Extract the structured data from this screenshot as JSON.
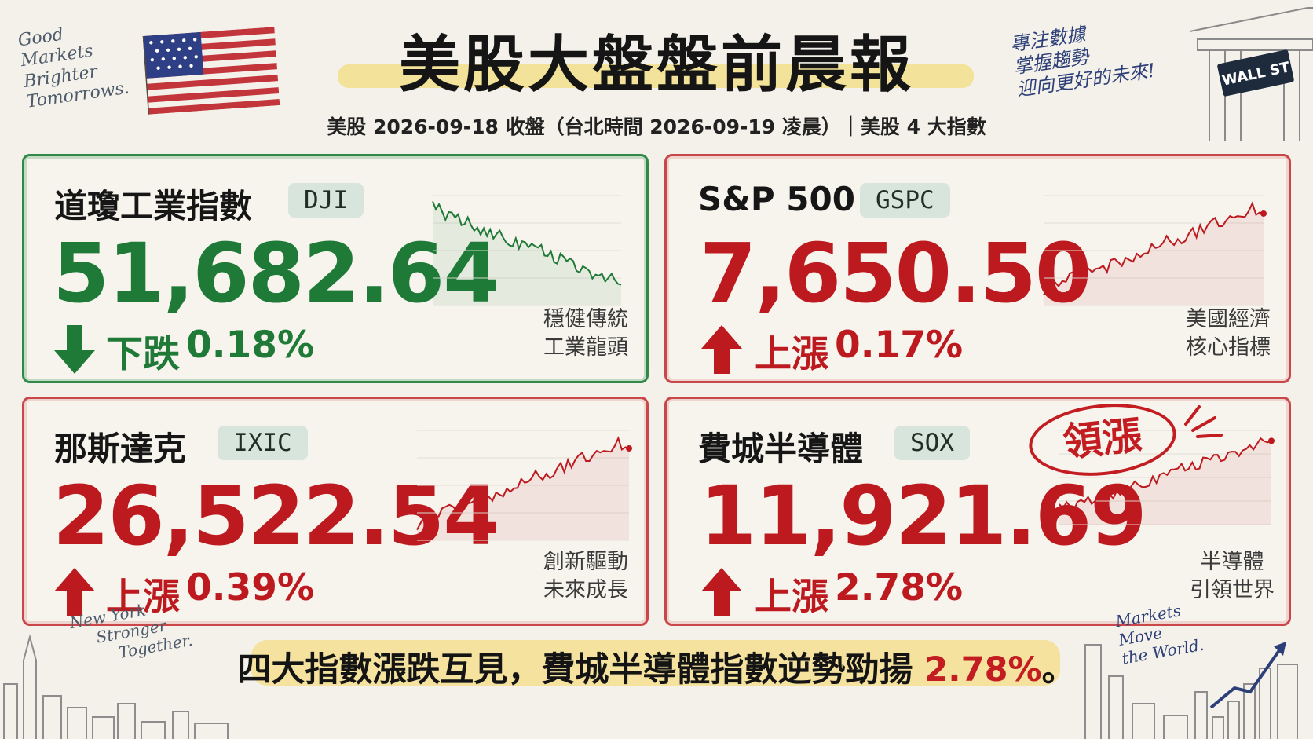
{
  "header": {
    "title": "美股大盤盤前晨報",
    "subtitle": "美股 2026-09-18 收盤（台北時間 2026-09-19 凌晨）｜美股 4 大指數"
  },
  "decor": {
    "top_left": [
      "Good",
      "Markets",
      "Brighter",
      "Tomorrows."
    ],
    "top_right": [
      "專注數據",
      "掌握趨勢",
      "迎向更好的未來!"
    ],
    "bottom_left": [
      "New York",
      "Stronger",
      "Together."
    ],
    "bottom_right": [
      "Markets",
      "Move",
      "the World."
    ],
    "street_sign": "WALL ST"
  },
  "cards": {
    "dji": {
      "name": "道瓊工業指數",
      "ticker": "DJI",
      "value": "51,682.64",
      "direction": "down",
      "change_label": "下跌",
      "change_pct": "0.18%",
      "note_lines": [
        "穩健傳統",
        "工業龍頭"
      ],
      "color": "#1f7a38"
    },
    "gspc": {
      "name": "S&P 500",
      "ticker": "GSPC",
      "value": "7,650.50",
      "direction": "up",
      "change_label": "上漲",
      "change_pct": "0.17%",
      "note_lines": [
        "美國經濟",
        "核心指標"
      ],
      "color": "#bd1a1f"
    },
    "ixic": {
      "name": "那斯達克",
      "ticker": "IXIC",
      "value": "26,522.54",
      "direction": "up",
      "change_label": "上漲",
      "change_pct": "0.39%",
      "note_lines": [
        "創新驅動",
        "未來成長"
      ],
      "color": "#bd1a1f"
    },
    "sox": {
      "name": "費城半導體",
      "ticker": "SOX",
      "value": "11,921.69",
      "direction": "up",
      "change_label": "上漲",
      "change_pct": "2.78%",
      "note_lines": [
        "半導體",
        "引領世界"
      ],
      "color": "#bd1a1f",
      "badge": "領漲"
    }
  },
  "footer": {
    "text_main": "四大指數漲跌互見，費城半導體指數逆勢勁揚",
    "text_highlight": "2.78%",
    "text_end": "。"
  },
  "colors": {
    "up": "#bd1a1f",
    "down": "#1f7a38",
    "highlight": "#f3dc7e"
  }
}
